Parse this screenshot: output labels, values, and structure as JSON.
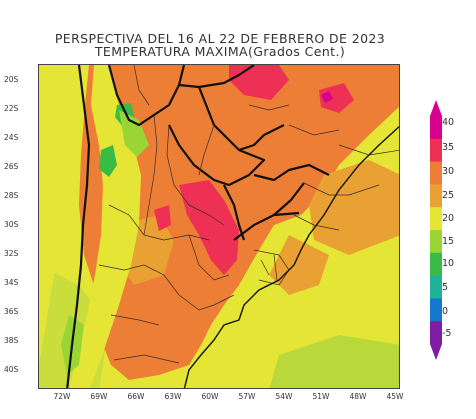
{
  "title_line1": "PERSPECTIVA DEL 16 AL 22 DE FEBRERO DE 2023",
  "title_line2": "TEMPERATURA MAXIMA(Grados Cent.)",
  "y_axis_labels": [
    "20S",
    "22S",
    "24S",
    "26S",
    "28S",
    "30S",
    "32S",
    "34S",
    "36S",
    "38S",
    "40S"
  ],
  "x_axis_labels": [
    "72W",
    "69W",
    "66W",
    "63W",
    "60W",
    "57W",
    "54W",
    "51W",
    "48W",
    "45W"
  ],
  "legend": {
    "ticks": [
      "40",
      "35",
      "30",
      "25",
      "20",
      "15",
      "10",
      "5",
      "0",
      "-5"
    ],
    "colors": [
      "#d8008f",
      "#ee3055",
      "#ed7e36",
      "#eaa133",
      "#e5e536",
      "#98d535",
      "#3bbb46",
      "#1fb39c",
      "#1478ce",
      "#7d1ea3"
    ]
  },
  "map_colors": {
    "ocean_yellow": "#e5e536",
    "base_orange": "#ed7e36",
    "light_orange": "#eaa133",
    "hot_red": "#ee3055",
    "green": "#98d535",
    "dark_green": "#3bbb46",
    "borders": "#111111"
  }
}
